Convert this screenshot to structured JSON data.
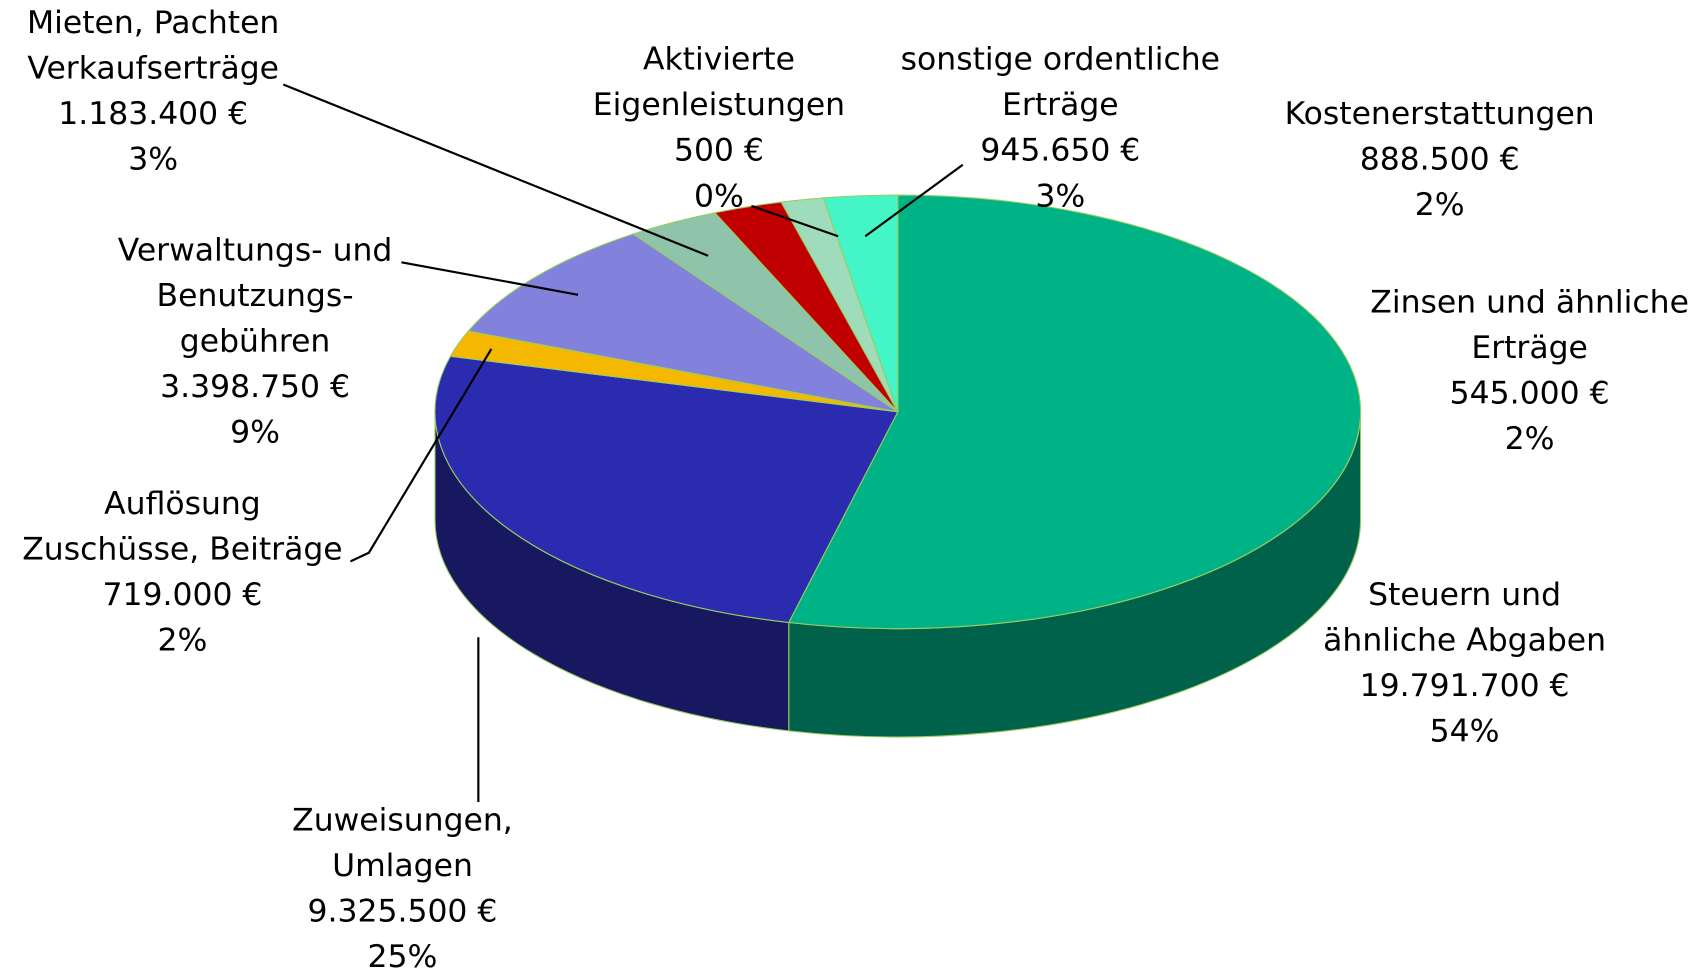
{
  "chart_data": {
    "type": "pie3d",
    "categories": [
      "Steuern und\nähnliche Abgaben",
      "Zuweisungen,\nUmlagen",
      "Auflösung\nZuschüsse, Beiträge",
      "Verwaltungs- und\nBenutzungs-\ngebühren",
      "Mieten, Pachten\nVerkaufserträge",
      "Kostenerstattungen",
      "Zinsen und ähnliche\nErträge",
      "Aktivierte\nEigenleistungen",
      "sonstige ordentliche\nErträge"
    ],
    "values": [
      19791700,
      9325500,
      719000,
      3398750,
      1183400,
      888500,
      545000,
      500,
      945650
    ],
    "value_labels": [
      "19.791.700 €",
      "9.325.500 €",
      "719.000 €",
      "3.398.750 €",
      "1.183.400 €",
      "888.500 €",
      "545.000 €",
      "500 €",
      "945.650 €"
    ],
    "percent_labels": [
      "54%",
      "25%",
      "2%",
      "9%",
      "3%",
      "2%",
      "2%",
      "0%",
      "3%"
    ],
    "colors": [
      "#00b386",
      "#2b2bb0",
      "#f5b800",
      "#8282dc",
      "#8fc4aa",
      "#c00000",
      "#9edcbc",
      "#d8f5e8",
      "#44f5c8"
    ]
  }
}
